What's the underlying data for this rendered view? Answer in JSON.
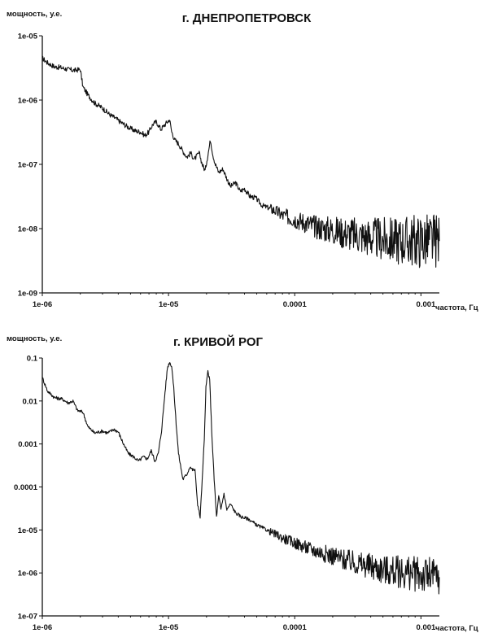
{
  "chart_data": [
    {
      "type": "line",
      "title": "г. ДНЕПРОПЕТРОВСК",
      "ylabel": "мощность, у.е.",
      "xlabel": "частота, Гц",
      "xscale": "log",
      "yscale": "log",
      "xlim": [
        1e-06,
        0.0014
      ],
      "ylim": [
        1e-09,
        1e-05
      ],
      "x_tick_values": [
        1e-06,
        1e-05,
        0.0001,
        0.001
      ],
      "x_tick_labels": [
        "1e-06",
        "1e-05",
        "0.0001",
        "0.001"
      ],
      "y_tick_values": [
        1e-05,
        1e-06,
        1e-07,
        1e-08,
        1e-09
      ],
      "y_tick_labels": [
        "1e-05",
        "1e-06",
        "1e-07",
        "1e-08",
        "1e-09"
      ],
      "grid": false,
      "series": [
        {
          "points": [
            [
              1e-06,
              4.5e-06
            ],
            [
              1.1e-06,
              3.8e-06
            ],
            [
              1.25e-06,
              3.3e-06
            ],
            [
              1.4e-06,
              3.2e-06
            ],
            [
              1.6e-06,
              3e-06
            ],
            [
              1.8e-06,
              2.9e-06
            ],
            [
              2e-06,
              3e-06
            ],
            [
              2.1e-06,
              1.6e-06
            ],
            [
              2.3e-06,
              1.2e-06
            ],
            [
              2.6e-06,
              9e-07
            ],
            [
              3e-06,
              7.5e-07
            ],
            [
              3.4e-06,
              6e-07
            ],
            [
              3.8e-06,
              5.2e-07
            ],
            [
              4.2e-06,
              4.5e-07
            ],
            [
              4.6e-06,
              4e-07
            ],
            [
              5e-06,
              3.6e-07
            ],
            [
              5.5e-06,
              3.3e-07
            ],
            [
              6e-06,
              3.2e-07
            ],
            [
              6.5e-06,
              2.8e-07
            ],
            [
              7e-06,
              3.2e-07
            ],
            [
              7.5e-06,
              4.2e-07
            ],
            [
              8e-06,
              4.6e-07
            ],
            [
              8.7e-06,
              3.5e-07
            ],
            [
              9.5e-06,
              4.3e-07
            ],
            [
              1.02e-05,
              5e-07
            ],
            [
              1.06e-05,
              3.2e-07
            ],
            [
              1.12e-05,
              2.4e-07
            ],
            [
              1.2e-05,
              2.1e-07
            ],
            [
              1.3e-05,
              1.6e-07
            ],
            [
              1.4e-05,
              1.3e-07
            ],
            [
              1.5e-05,
              1.5e-07
            ],
            [
              1.6e-05,
              1.2e-07
            ],
            [
              1.75e-05,
              1.5e-07
            ],
            [
              1.85e-05,
              1e-07
            ],
            [
              1.95e-05,
              8e-08
            ],
            [
              2.05e-05,
              1.4e-07
            ],
            [
              2.15e-05,
              2.4e-07
            ],
            [
              2.25e-05,
              1.4e-07
            ],
            [
              2.35e-05,
              1e-07
            ],
            [
              2.5e-05,
              7.5e-08
            ],
            [
              2.7e-05,
              8.5e-08
            ],
            [
              2.9e-05,
              6e-08
            ],
            [
              3.1e-05,
              4.5e-08
            ],
            [
              3.4e-05,
              5.2e-08
            ],
            [
              3.7e-05,
              3.8e-08
            ],
            [
              4e-05,
              4.2e-08
            ],
            [
              4.4e-05,
              3.2e-08
            ],
            [
              4.9e-05,
              3e-08
            ],
            [
              5.5e-05,
              2.3e-08
            ],
            [
              6.2e-05,
              2.1e-08
            ],
            [
              7e-05,
              1.9e-08
            ],
            [
              8e-05,
              1.6e-08
            ],
            [
              9e-05,
              1.5e-08
            ],
            [
              0.0001,
              1.4e-08
            ],
            [
              0.00012,
              1.25e-08
            ],
            [
              0.00014,
              1.1e-08
            ],
            [
              0.00017,
              1e-08
            ],
            [
              0.0002,
              9.5e-09
            ],
            [
              0.00025,
              8.5e-09
            ],
            [
              0.0003,
              8e-09
            ],
            [
              0.0004,
              7.3e-09
            ],
            [
              0.0005,
              6.8e-09
            ],
            [
              0.0006,
              6.6e-09
            ],
            [
              0.0008,
              6.5e-09
            ],
            [
              0.001,
              6.4e-09
            ],
            [
              0.0012,
              6.5e-09
            ],
            [
              0.0014,
              6.4e-09
            ]
          ]
        }
      ]
    },
    {
      "type": "line",
      "title": "г. КРИВОЙ РОГ",
      "ylabel": "мощность, у.е.",
      "xlabel": "частота, Гц",
      "xscale": "log",
      "yscale": "log",
      "xlim": [
        1e-06,
        0.0014
      ],
      "ylim": [
        1e-07,
        0.1
      ],
      "x_tick_values": [
        1e-06,
        1e-05,
        0.0001,
        0.001
      ],
      "x_tick_labels": [
        "1e-06",
        "1e-05",
        "0.0001",
        "0.001"
      ],
      "y_tick_values": [
        0.1,
        0.01,
        0.001,
        0.0001,
        1e-05,
        1e-06,
        1e-07
      ],
      "y_tick_labels": [
        "0.1",
        "0.01",
        "0.001",
        "0.0001",
        "1e-05",
        "1e-06",
        "1e-07"
      ],
      "grid": false,
      "series": [
        {
          "points": [
            [
              1e-06,
              0.035
            ],
            [
              1.1e-06,
              0.017
            ],
            [
              1.25e-06,
              0.012
            ],
            [
              1.45e-06,
              0.011
            ],
            [
              1.6e-06,
              0.009
            ],
            [
              1.75e-06,
              0.01
            ],
            [
              1.9e-06,
              0.006
            ],
            [
              2.1e-06,
              0.0055
            ],
            [
              2.3e-06,
              0.0025
            ],
            [
              2.6e-06,
              0.0018
            ],
            [
              3e-06,
              0.002
            ],
            [
              3.3e-06,
              0.0018
            ],
            [
              3.7e-06,
              0.0022
            ],
            [
              4e-06,
              0.0019
            ],
            [
              4.4e-06,
              0.001
            ],
            [
              4.8e-06,
              0.0006
            ],
            [
              5.3e-06,
              0.0005
            ],
            [
              5.8e-06,
              0.0004
            ],
            [
              6.3e-06,
              0.0005
            ],
            [
              6.8e-06,
              0.00045
            ],
            [
              7.3e-06,
              0.0007
            ],
            [
              7.8e-06,
              0.0004
            ],
            [
              8.3e-06,
              0.0006
            ],
            [
              8.8e-06,
              0.002
            ],
            [
              9.3e-06,
              0.012
            ],
            [
              9.8e-06,
              0.06
            ],
            [
              1.02e-05,
              0.08
            ],
            [
              1.06e-05,
              0.065
            ],
            [
              1.1e-05,
              0.02
            ],
            [
              1.15e-05,
              0.003
            ],
            [
              1.2e-05,
              0.0006
            ],
            [
              1.3e-05,
              0.00015
            ],
            [
              1.4e-05,
              0.0002
            ],
            [
              1.48e-05,
              0.0003
            ],
            [
              1.55e-05,
              0.00025
            ],
            [
              1.62e-05,
              0.00025
            ],
            [
              1.7e-05,
              4e-05
            ],
            [
              1.78e-05,
              2e-05
            ],
            [
              1.85e-05,
              0.00015
            ],
            [
              1.92e-05,
              0.0012
            ],
            [
              1.98e-05,
              0.02
            ],
            [
              2.05e-05,
              0.05
            ],
            [
              2.12e-05,
              0.03
            ],
            [
              2.2e-05,
              0.002
            ],
            [
              2.3e-05,
              0.00015
            ],
            [
              2.4e-05,
              2e-05
            ],
            [
              2.5e-05,
              6e-05
            ],
            [
              2.6e-05,
              3e-05
            ],
            [
              2.75e-05,
              7e-05
            ],
            [
              2.9e-05,
              3e-05
            ],
            [
              3.1e-05,
              4e-05
            ],
            [
              3.4e-05,
              2.5e-05
            ],
            [
              3.8e-05,
              2e-05
            ],
            [
              4.3e-05,
              1.8e-05
            ],
            [
              5e-05,
              1.3e-05
            ],
            [
              6e-05,
              1e-05
            ],
            [
              7e-05,
              8e-06
            ],
            [
              8e-05,
              6.5e-06
            ],
            [
              0.0001,
              5e-06
            ],
            [
              0.00012,
              4e-06
            ],
            [
              0.00015,
              3.2e-06
            ],
            [
              0.0002,
              2.5e-06
            ],
            [
              0.00025,
              2e-06
            ],
            [
              0.0003,
              1.7e-06
            ],
            [
              0.0004,
              1.4e-06
            ],
            [
              0.0005,
              1.2e-06
            ],
            [
              0.0006,
              1.1e-06
            ],
            [
              0.0008,
              1e-06
            ],
            [
              0.001,
              9e-07
            ],
            [
              0.0012,
              8.5e-07
            ],
            [
              0.0014,
              8e-07
            ]
          ]
        }
      ]
    }
  ]
}
